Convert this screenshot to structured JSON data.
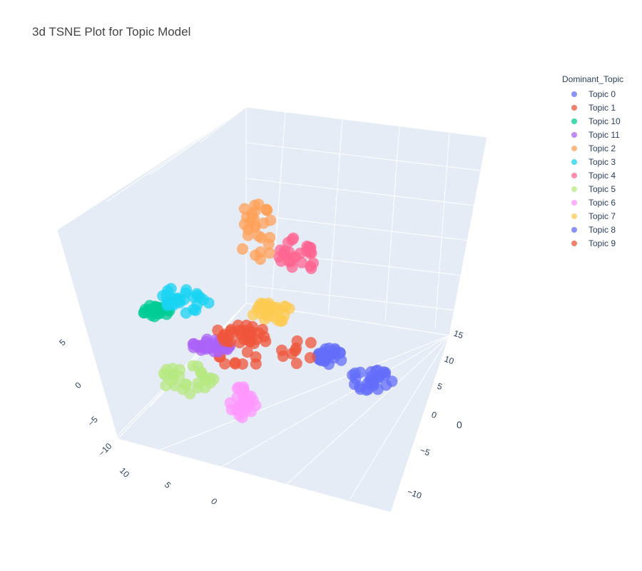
{
  "chart_data": {
    "type": "scatter",
    "title": "3d TSNE Plot for Topic Model",
    "legend_title": "Dominant_Topic",
    "legend_placement": "right",
    "grid": true,
    "axes": {
      "x": {
        "title": "",
        "ticks": [
          "−10",
          "−5",
          "0",
          "5"
        ]
      },
      "y": {
        "title": "",
        "ticks": [
          "10",
          "5",
          "0"
        ]
      },
      "z": {
        "title": "0",
        "ticks": [
          "15",
          "10",
          "5",
          "0",
          "−5",
          "−10"
        ]
      }
    },
    "series": [
      {
        "name": "Topic 0",
        "color": "#636efa",
        "center": [
          20,
          -50
        ],
        "spread": [
          10,
          8
        ]
      },
      {
        "name": "Topic 1",
        "color": "#ef553b",
        "center": [
          -30,
          -45
        ],
        "spread": [
          45,
          14
        ]
      },
      {
        "name": "Topic 10",
        "color": "#00cc96",
        "center": [
          -100,
          -10
        ],
        "spread": [
          10,
          6
        ]
      },
      {
        "name": "Topic 11",
        "color": "#ab63fa",
        "center": [
          -60,
          -40
        ],
        "spread": [
          15,
          6
        ]
      },
      {
        "name": "Topic 2",
        "color": "#ffa15a",
        "center": [
          -30,
          60
        ],
        "spread": [
          12,
          30
        ]
      },
      {
        "name": "Topic 3",
        "color": "#19d3f3",
        "center": [
          -80,
          0
        ],
        "spread": [
          18,
          12
        ]
      },
      {
        "name": "Topic 4",
        "color": "#ff6692",
        "center": [
          0,
          40
        ],
        "spread": [
          15,
          15
        ]
      },
      {
        "name": "Topic 5",
        "color": "#b6e880",
        "center": [
          -80,
          -70
        ],
        "spread": [
          20,
          15
        ]
      },
      {
        "name": "Topic 6",
        "color": "#ff97ff",
        "center": [
          -40,
          -90
        ],
        "spread": [
          10,
          14
        ]
      },
      {
        "name": "Topic 7",
        "color": "#fecb52",
        "center": [
          -20,
          -10
        ],
        "spread": [
          15,
          10
        ]
      },
      {
        "name": "Topic 8",
        "color": "#636efa",
        "center": [
          50,
          -70
        ],
        "spread": [
          15,
          10
        ]
      },
      {
        "name": "Topic 9",
        "color": "#ef553b",
        "center": [
          -40,
          -30
        ],
        "spread": [
          20,
          8
        ]
      }
    ]
  }
}
